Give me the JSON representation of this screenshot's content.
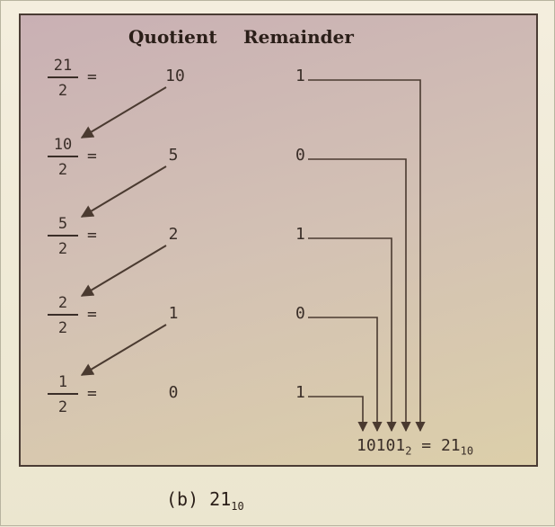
{
  "headers": {
    "quotient": "Quotient",
    "remainder": "Remainder"
  },
  "rows": [
    {
      "numerator": "21",
      "denominator": "2",
      "equals": "=",
      "quotient": "10",
      "remainder": "1"
    },
    {
      "numerator": "10",
      "denominator": "2",
      "equals": "=",
      "quotient": "5",
      "remainder": "0"
    },
    {
      "numerator": "5",
      "denominator": "2",
      "equals": "=",
      "quotient": "2",
      "remainder": "1"
    },
    {
      "numerator": "2",
      "denominator": "2",
      "equals": "=",
      "quotient": "1",
      "remainder": "0"
    },
    {
      "numerator": "1",
      "denominator": "2",
      "equals": "=",
      "quotient": "0",
      "remainder": "1"
    }
  ],
  "result": {
    "binary": "10101",
    "binary_base": "2",
    "equals": "=",
    "decimal": "21",
    "decimal_base": "10"
  },
  "caption": {
    "prefix": "(b) 21",
    "base": "10"
  },
  "colors": {
    "arrow": "#4a3a30",
    "panel_border": "#4a3c34"
  }
}
